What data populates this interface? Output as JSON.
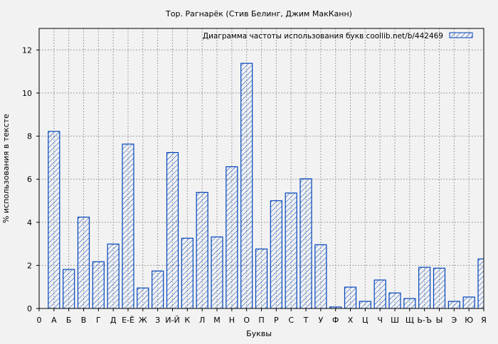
{
  "chart_data": {
    "type": "bar",
    "title": "Тор. Рагнарёк (Стив Белинг, Джим МакКанн)",
    "xlabel": "Буквы",
    "ylabel": "% использования в тексте",
    "legend": {
      "label": "Диаграмма частоты использования букв  coollib.net/b/442469",
      "placement": "top-right"
    },
    "x_origin_label": "0",
    "categories": [
      "А",
      "Б",
      "В",
      "Г",
      "Д",
      "Е-Ё",
      "Ж",
      "З",
      "И-Й",
      "К",
      "Л",
      "М",
      "Н",
      "О",
      "П",
      "Р",
      "С",
      "Т",
      "У",
      "Ф",
      "Х",
      "Ц",
      "Ч",
      "Ш",
      "Щ",
      "Ь-Ъ",
      "Ы",
      "Э",
      "Ю",
      "Я"
    ],
    "values": [
      8.22,
      1.81,
      4.24,
      2.17,
      2.99,
      7.63,
      0.95,
      1.74,
      7.24,
      3.26,
      5.39,
      3.32,
      6.58,
      11.38,
      2.76,
      5.0,
      5.36,
      6.02,
      2.96,
      0.07,
      0.99,
      0.33,
      1.32,
      0.72,
      0.46,
      1.91,
      1.87,
      0.33,
      0.53,
      2.3
    ],
    "ylim": [
      0,
      13
    ],
    "xlim": [
      0,
      30
    ],
    "yticks": [
      0,
      2,
      4,
      6,
      8,
      10,
      12
    ],
    "grid": true,
    "colors": {
      "bar_stroke": "#0044bb",
      "background": "#f2f2f2",
      "grid": "#a0a0a0"
    }
  }
}
